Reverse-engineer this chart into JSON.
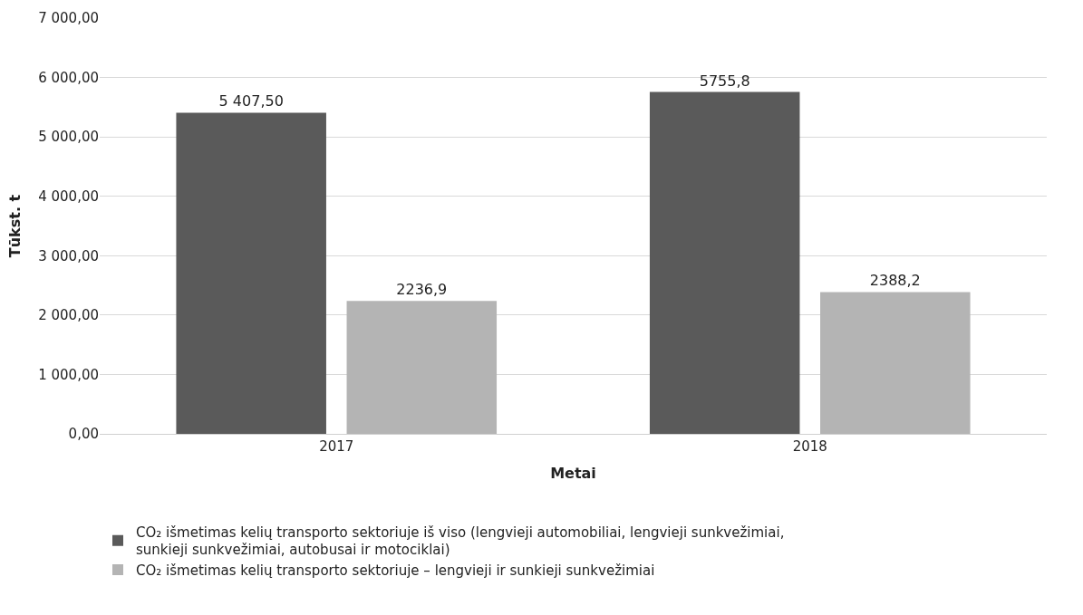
{
  "chart_data": {
    "type": "bar",
    "xlabel": "Metai",
    "ylabel": "Tūkst. t",
    "categories": [
      "2017",
      "2018"
    ],
    "series": [
      {
        "name": "CO₂ išmetimas kelių transporto sektoriuje iš viso (lengvieji automobiliai, lengvieji sunkvežimiai, sunkieji sunkvežimiai, autobusai ir motociklai)",
        "color": "#5a5a5a",
        "values": [
          5407.5,
          5755.8
        ],
        "value_labels": [
          "5 407,50",
          "5755,8"
        ]
      },
      {
        "name": "CO₂ išmetimas kelių transporto sektoriuje – lengvieji ir sunkieji sunkvežimiai",
        "color": "#b4b4b4",
        "values": [
          2236.9,
          2388.2
        ],
        "value_labels": [
          "2236,9",
          "2388,2"
        ]
      }
    ],
    "ylim": [
      0,
      7000
    ],
    "yticks": [
      {
        "value": 0,
        "label": "0,00"
      },
      {
        "value": 1000,
        "label": "1 000,00"
      },
      {
        "value": 2000,
        "label": "2 000,00"
      },
      {
        "value": 3000,
        "label": "3 000,00"
      },
      {
        "value": 4000,
        "label": "4 000,00"
      },
      {
        "value": 5000,
        "label": "5 000,00"
      },
      {
        "value": 6000,
        "label": "6 000,00"
      },
      {
        "value": 7000,
        "label": "7 000,00"
      }
    ],
    "grid": "y",
    "legend": "bottom"
  }
}
